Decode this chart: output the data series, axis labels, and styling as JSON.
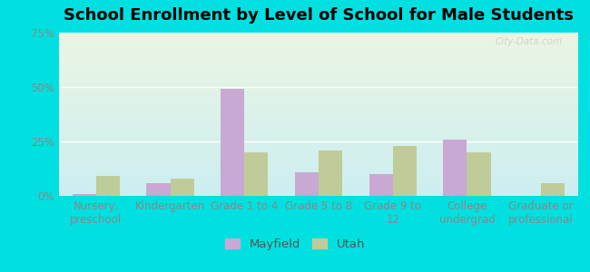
{
  "title": "School Enrollment by Level of School for Male Students",
  "categories": [
    "Nursery,\npreschool",
    "Kindergarten",
    "Grade 1 to 4",
    "Grade 5 to 8",
    "Grade 9 to\n12",
    "College\nundergrad",
    "Graduate or\nprofessional"
  ],
  "mayfield_values": [
    1,
    6,
    49,
    11,
    10,
    26,
    0
  ],
  "utah_values": [
    9,
    8,
    20,
    21,
    23,
    20,
    6
  ],
  "mayfield_color": "#c9a8d4",
  "utah_color": "#bfcc99",
  "background_outer": "#00e0e0",
  "background_inner_top": "#eaf5e2",
  "background_inner_bottom": "#cceef0",
  "ylim": [
    0,
    75
  ],
  "yticks": [
    0,
    25,
    50,
    75
  ],
  "ytick_labels": [
    "0%",
    "25%",
    "50%",
    "75%"
  ],
  "bar_width": 0.32,
  "legend_labels": [
    "Mayfield",
    "Utah"
  ],
  "title_fontsize": 13,
  "tick_fontsize": 8.5,
  "legend_fontsize": 9.5
}
